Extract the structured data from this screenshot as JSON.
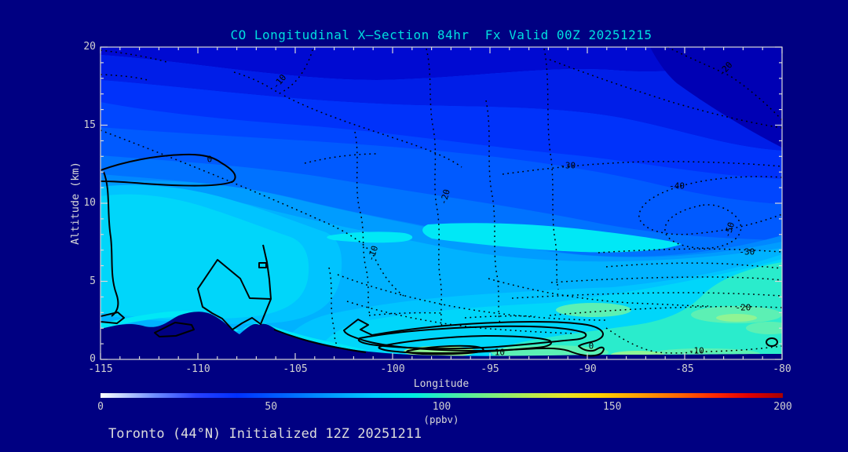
{
  "page": {
    "background": "#000082"
  },
  "header": {
    "title": "CO Longitudinal X—Section 84hr  Fx Valid 00Z 20251215",
    "title_color": "#00dfdf"
  },
  "footer": {
    "annotation": "Toronto (44°N) Initialized 12Z 20251211"
  },
  "chart_data": {
    "type": "filled_contour",
    "title": "CO Longitudinal X—Section 84hr  Fx Valid 00Z 20251215",
    "station": "Toronto (44°N)",
    "x_axis": {
      "label": "Longitude",
      "range": [
        -115,
        -80
      ],
      "ticks": [
        "-115",
        "-110",
        "-105",
        "-100",
        "-95",
        "-90",
        "-85",
        "-80"
      ],
      "minor_tick_interval_deg": 1
    },
    "y_axis": {
      "label": "Altitude (km)",
      "range": [
        0,
        20
      ],
      "ticks": [
        "0",
        "5",
        "10",
        "15",
        "20"
      ],
      "minor_tick_interval_km": 1
    },
    "colorbar": {
      "label": "(ppbv)",
      "range": [
        0,
        200
      ],
      "ticks": [
        "0",
        "50",
        "100",
        "150",
        "200"
      ],
      "gradient": [
        "#ffffff",
        "#2840ff",
        "#0064ff",
        "#00ccff",
        "#46eeaa",
        "#b8ec4e",
        "#ffd200",
        "#ff6400",
        "#e00000",
        "#a80000"
      ]
    },
    "line_styles": {
      "negative_contours": "dotted",
      "zero_and_positive_contours": "solid"
    },
    "contour_levels": {
      "dotted_values": [
        -50,
        -40,
        -30,
        -20,
        -10
      ],
      "solid_values": [
        0,
        10
      ]
    },
    "contour_labels": [
      {
        "value": "0",
        "lon": -109.4,
        "alt_km": 12.8,
        "rotation": 0
      },
      {
        "value": "-10",
        "lon": -105.8,
        "alt_km": 17.8,
        "rotation": -50
      },
      {
        "value": "-10",
        "lon": -101.0,
        "alt_km": 6.8,
        "rotation": -72
      },
      {
        "value": "-20",
        "lon": -97.3,
        "alt_km": 10.4,
        "rotation": -75
      },
      {
        "value": "-20",
        "lon": -82.9,
        "alt_km": 18.6,
        "rotation": -48
      },
      {
        "value": "-30",
        "lon": -91.0,
        "alt_km": 12.4,
        "rotation": 0
      },
      {
        "value": "-40",
        "lon": -85.4,
        "alt_km": 11.1,
        "rotation": 0
      },
      {
        "value": "-50",
        "lon": -82.7,
        "alt_km": 8.3,
        "rotation": -72
      },
      {
        "value": "-30",
        "lon": -81.8,
        "alt_km": 6.9,
        "rotation": 0
      },
      {
        "value": "-20",
        "lon": -82.0,
        "alt_km": 3.3,
        "rotation": 0
      },
      {
        "value": "-10",
        "lon": -84.4,
        "alt_km": 0.55,
        "rotation": 0
      },
      {
        "value": "0",
        "lon": -89.8,
        "alt_km": 0.85,
        "rotation": 0
      },
      {
        "value": "10",
        "lon": -94.5,
        "alt_km": 0.45,
        "rotation": 0
      }
    ],
    "fill_levels_ppbv_colors": [
      {
        "ppbv": 25,
        "color": "#0000b4"
      },
      {
        "ppbv": 30,
        "color": "#000ad2"
      },
      {
        "ppbv": 35,
        "color": "#001ee8"
      },
      {
        "ppbv": 40,
        "color": "#0032fa"
      },
      {
        "ppbv": 45,
        "color": "#0046ff"
      },
      {
        "ppbv": 50,
        "color": "#005aff"
      },
      {
        "ppbv": 55,
        "color": "#0072ff"
      },
      {
        "ppbv": 60,
        "color": "#0088ff"
      },
      {
        "ppbv": 65,
        "color": "#009cff"
      },
      {
        "ppbv": 70,
        "color": "#00b2ff"
      },
      {
        "ppbv": 75,
        "color": "#00c4ff"
      },
      {
        "ppbv": 80,
        "color": "#00d6fa"
      },
      {
        "ppbv": 85,
        "color": "#00e8f6"
      },
      {
        "ppbv": 90,
        "color": "#2aeccc"
      },
      {
        "ppbv": 95,
        "color": "#5cf0b4"
      },
      {
        "ppbv": 100,
        "color": "#90f494"
      }
    ],
    "terrain_profile_lon_km": [
      [
        -115,
        1.96
      ],
      [
        -112.7,
        2.1
      ],
      [
        -111.6,
        2.0
      ],
      [
        -110.9,
        2.8
      ],
      [
        -109.6,
        2.95
      ],
      [
        -107.9,
        1.6
      ],
      [
        -106.9,
        2.2
      ],
      [
        -106.0,
        1.9
      ],
      [
        -103.8,
        0.8
      ],
      [
        -101.6,
        0.3
      ],
      [
        -97.6,
        0.25
      ],
      [
        -92.6,
        0.3
      ],
      [
        -87.6,
        0.3
      ],
      [
        -80.0,
        0.35
      ]
    ]
  }
}
